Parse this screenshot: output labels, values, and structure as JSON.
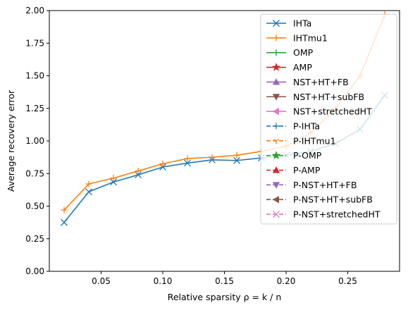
{
  "chart_data": {
    "type": "line",
    "xlabel": "Relative sparsity ρ = k / n",
    "ylabel": "Average recovery error",
    "xlim": [
      0.008,
      0.292
    ],
    "ylim": [
      0.0,
      2.0
    ],
    "xticks": [
      0.05,
      0.1,
      0.15,
      0.2,
      0.25
    ],
    "xtick_labels": [
      "0.05",
      "0.10",
      "0.15",
      "0.20",
      "0.25"
    ],
    "yticks": [
      0.0,
      0.25,
      0.5,
      0.75,
      1.0,
      1.25,
      1.5,
      1.75,
      2.0
    ],
    "ytick_labels": [
      "0.00",
      "0.25",
      "0.50",
      "0.75",
      "1.00",
      "1.25",
      "1.50",
      "1.75",
      "2.00"
    ],
    "grid": false,
    "legend_position": "top-right",
    "series": [
      {
        "name": "IHTa",
        "color": "#1f77b4",
        "marker": "x",
        "dash": "solid",
        "x": [
          0.02,
          0.04,
          0.06,
          0.08,
          0.1,
          0.12,
          0.14,
          0.16,
          0.18,
          0.2,
          0.22,
          0.24,
          0.26,
          0.28
        ],
        "y": [
          0.375,
          0.61,
          0.685,
          0.74,
          0.8,
          0.83,
          0.855,
          0.85,
          0.87,
          0.89,
          0.92,
          0.98,
          1.09,
          1.35
        ]
      },
      {
        "name": "IHTmu1",
        "color": "#ff7f0e",
        "marker": "+",
        "dash": "solid",
        "x": [
          0.02,
          0.04,
          0.06,
          0.08,
          0.1,
          0.12,
          0.14,
          0.16,
          0.18,
          0.2,
          0.22,
          0.24,
          0.26,
          0.28
        ],
        "y": [
          0.47,
          0.67,
          0.715,
          0.77,
          0.825,
          0.865,
          0.875,
          0.89,
          0.92,
          0.96,
          1.06,
          1.25,
          1.5,
          1.97
        ]
      },
      {
        "name": "OMP",
        "color": "#2ca02c",
        "marker": "|",
        "dash": "solid",
        "x": [],
        "y": []
      },
      {
        "name": "AMP",
        "color": "#d62728",
        "marker": "*",
        "dash": "solid",
        "x": [],
        "y": []
      },
      {
        "name": "NST+HT+FB",
        "color": "#9467bd",
        "marker": "^",
        "dash": "solid",
        "x": [],
        "y": []
      },
      {
        "name": "NST+HT+subFB",
        "color": "#8c564b",
        "marker": "v",
        "dash": "solid",
        "x": [],
        "y": []
      },
      {
        "name": "NST+stretchedHT",
        "color": "#e377c2",
        "marker": "<",
        "dash": "solid",
        "x": [],
        "y": []
      },
      {
        "name": "P-IHTa",
        "color": "#1f77b4",
        "marker": "+",
        "dash": "dashed",
        "x": [],
        "y": []
      },
      {
        "name": "P-IHTmu1",
        "color": "#ff7f0e",
        "marker": "1",
        "dash": "dashed",
        "x": [],
        "y": []
      },
      {
        "name": "P-OMP",
        "color": "#2ca02c",
        "marker": "*",
        "dash": "dashed",
        "x": [],
        "y": []
      },
      {
        "name": "P-AMP",
        "color": "#d62728",
        "marker": "^",
        "dash": "dashed",
        "x": [],
        "y": []
      },
      {
        "name": "P-NST+HT+FB",
        "color": "#9467bd",
        "marker": "v",
        "dash": "dashed",
        "x": [],
        "y": []
      },
      {
        "name": "P-NST+HT+subFB",
        "color": "#8c564b",
        "marker": "<",
        "dash": "dashed",
        "x": [],
        "y": []
      },
      {
        "name": "P-NST+stretchedHT",
        "color": "#e377c2",
        "marker": "x",
        "dash": "dashed",
        "x": [],
        "y": []
      }
    ]
  }
}
